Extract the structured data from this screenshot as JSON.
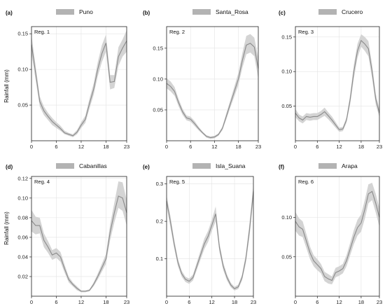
{
  "figure": {
    "ylabel": "Rainfall (mm)"
  },
  "chart_data": [
    {
      "type": "line",
      "panel_letter": "(a)",
      "legend": "Puno",
      "region": "Reg. 1",
      "ylabel": "Rainfall (mm)",
      "x": [
        0,
        1,
        2,
        3,
        4,
        5,
        6,
        7,
        8,
        9,
        10,
        11,
        12,
        13,
        14,
        15,
        16,
        17,
        18,
        19,
        20,
        21,
        22,
        23
      ],
      "series": [
        {
          "values": [
            0.135,
            0.095,
            0.055,
            0.042,
            0.034,
            0.027,
            0.022,
            0.017,
            0.011,
            0.009,
            0.007,
            0.012,
            0.022,
            0.03,
            0.052,
            0.072,
            0.1,
            0.122,
            0.137,
            0.082,
            0.083,
            0.118,
            0.13,
            0.14
          ],
          "lower": [
            0.122,
            0.085,
            0.048,
            0.036,
            0.029,
            0.022,
            0.018,
            0.014,
            0.009,
            0.007,
            0.005,
            0.009,
            0.018,
            0.025,
            0.045,
            0.064,
            0.09,
            0.11,
            0.125,
            0.072,
            0.074,
            0.105,
            0.118,
            0.125
          ],
          "upper": [
            0.148,
            0.105,
            0.062,
            0.048,
            0.039,
            0.032,
            0.026,
            0.021,
            0.014,
            0.011,
            0.009,
            0.015,
            0.026,
            0.035,
            0.059,
            0.08,
            0.11,
            0.134,
            0.149,
            0.092,
            0.092,
            0.131,
            0.142,
            0.155
          ]
        }
      ],
      "xlim": [
        0,
        23
      ],
      "ylim": [
        0,
        0.16
      ],
      "yticks": [
        0.05,
        0.1,
        0.15
      ],
      "ytick_labels": [
        "0.05",
        "0.10",
        "0.15"
      ],
      "xticks": [
        0,
        6,
        12,
        18,
        23
      ],
      "xtick_labels": [
        "0",
        "6",
        "12",
        "18",
        "23"
      ]
    },
    {
      "type": "line",
      "panel_letter": "(b)",
      "legend": "Santa_Rosa",
      "region": "Reg. 2",
      "x": [
        0,
        1,
        2,
        3,
        4,
        5,
        6,
        7,
        8,
        9,
        10,
        11,
        12,
        13,
        14,
        15,
        16,
        17,
        18,
        19,
        20,
        21,
        22,
        23
      ],
      "series": [
        {
          "values": [
            0.093,
            0.088,
            0.08,
            0.062,
            0.047,
            0.037,
            0.035,
            0.028,
            0.02,
            0.013,
            0.007,
            0.005,
            0.006,
            0.01,
            0.02,
            0.04,
            0.06,
            0.08,
            0.1,
            0.13,
            0.155,
            0.158,
            0.152,
            0.117
          ],
          "lower": [
            0.085,
            0.08,
            0.073,
            0.056,
            0.042,
            0.033,
            0.031,
            0.024,
            0.017,
            0.011,
            0.005,
            0.003,
            0.004,
            0.008,
            0.017,
            0.035,
            0.054,
            0.072,
            0.09,
            0.118,
            0.14,
            0.143,
            0.137,
            0.1
          ],
          "upper": [
            0.101,
            0.096,
            0.087,
            0.068,
            0.052,
            0.041,
            0.039,
            0.032,
            0.023,
            0.015,
            0.009,
            0.007,
            0.008,
            0.012,
            0.023,
            0.045,
            0.066,
            0.088,
            0.11,
            0.142,
            0.17,
            0.173,
            0.167,
            0.134
          ]
        }
      ],
      "xlim": [
        0,
        23
      ],
      "ylim": [
        0,
        0.185
      ],
      "yticks": [
        0.05,
        0.1,
        0.15
      ],
      "ytick_labels": [
        "0.05",
        "0.10",
        "0.15"
      ],
      "xticks": [
        0,
        6,
        12,
        18,
        23
      ],
      "xtick_labels": [
        "0",
        "6",
        "12",
        "18",
        "23"
      ]
    },
    {
      "type": "line",
      "panel_letter": "(c)",
      "legend": "Crucero",
      "region": "Reg. 3",
      "x": [
        0,
        1,
        2,
        3,
        4,
        5,
        6,
        7,
        8,
        9,
        10,
        11,
        12,
        13,
        14,
        15,
        16,
        17,
        18,
        19,
        20,
        21,
        22,
        23
      ],
      "series": [
        {
          "values": [
            0.04,
            0.033,
            0.03,
            0.035,
            0.034,
            0.035,
            0.035,
            0.038,
            0.042,
            0.036,
            0.03,
            0.023,
            0.016,
            0.017,
            0.03,
            0.06,
            0.1,
            0.13,
            0.145,
            0.14,
            0.133,
            0.1,
            0.06,
            0.04
          ],
          "lower": [
            0.034,
            0.028,
            0.025,
            0.03,
            0.029,
            0.03,
            0.03,
            0.033,
            0.036,
            0.031,
            0.025,
            0.019,
            0.013,
            0.014,
            0.026,
            0.053,
            0.09,
            0.12,
            0.136,
            0.13,
            0.122,
            0.09,
            0.052,
            0.034
          ],
          "upper": [
            0.046,
            0.038,
            0.035,
            0.04,
            0.039,
            0.04,
            0.04,
            0.043,
            0.048,
            0.041,
            0.035,
            0.027,
            0.019,
            0.02,
            0.034,
            0.067,
            0.11,
            0.14,
            0.154,
            0.15,
            0.144,
            0.11,
            0.068,
            0.046
          ]
        }
      ],
      "xlim": [
        0,
        23
      ],
      "ylim": [
        0,
        0.165
      ],
      "yticks": [
        0.05,
        0.1,
        0.15
      ],
      "ytick_labels": [
        "0.05",
        "0.10",
        "0.15"
      ],
      "xticks": [
        0,
        6,
        12,
        18,
        23
      ],
      "xtick_labels": [
        "0",
        "6",
        "12",
        "18",
        "23"
      ]
    },
    {
      "type": "line",
      "panel_letter": "(d)",
      "legend": "Cabanillas",
      "region": "Reg. 4",
      "ylabel": "Rainfall (mm)",
      "x": [
        0,
        1,
        2,
        3,
        4,
        5,
        6,
        7,
        8,
        9,
        10,
        11,
        12,
        13,
        14,
        15,
        16,
        17,
        18,
        19,
        20,
        21,
        22,
        23
      ],
      "series": [
        {
          "values": [
            0.077,
            0.072,
            0.072,
            0.057,
            0.05,
            0.042,
            0.044,
            0.04,
            0.028,
            0.017,
            0.012,
            0.008,
            0.005,
            0.005,
            0.006,
            0.012,
            0.02,
            0.029,
            0.038,
            0.065,
            0.085,
            0.102,
            0.1,
            0.085
          ],
          "lower": [
            0.066,
            0.063,
            0.064,
            0.05,
            0.044,
            0.037,
            0.039,
            0.035,
            0.024,
            0.014,
            0.01,
            0.006,
            0.004,
            0.004,
            0.005,
            0.01,
            0.017,
            0.025,
            0.033,
            0.057,
            0.075,
            0.09,
            0.087,
            0.072
          ],
          "upper": [
            0.088,
            0.081,
            0.08,
            0.064,
            0.056,
            0.047,
            0.049,
            0.045,
            0.032,
            0.02,
            0.014,
            0.01,
            0.006,
            0.006,
            0.007,
            0.014,
            0.023,
            0.033,
            0.043,
            0.073,
            0.095,
            0.117,
            0.116,
            0.098
          ]
        }
      ],
      "xlim": [
        0,
        23
      ],
      "ylim": [
        0,
        0.122
      ],
      "yticks": [
        0.02,
        0.04,
        0.06,
        0.08,
        0.1,
        0.12
      ],
      "ytick_labels": [
        "0.02",
        "0.04",
        "0.06",
        "0.08",
        "0.10",
        "0.12"
      ],
      "xticks": [
        0,
        6,
        12,
        18,
        23
      ],
      "xtick_labels": [
        "0",
        "6",
        "12",
        "18",
        "23"
      ]
    },
    {
      "type": "line",
      "panel_letter": "(e)",
      "legend": "Isla_Suana",
      "region": "Reg. 5",
      "x": [
        0,
        1,
        2,
        3,
        4,
        5,
        6,
        7,
        8,
        9,
        10,
        11,
        12,
        13,
        14,
        15,
        16,
        17,
        18,
        19,
        20,
        21,
        22,
        23
      ],
      "series": [
        {
          "values": [
            0.255,
            0.2,
            0.14,
            0.09,
            0.06,
            0.045,
            0.04,
            0.05,
            0.08,
            0.11,
            0.14,
            0.16,
            0.19,
            0.22,
            0.13,
            0.08,
            0.05,
            0.03,
            0.02,
            0.025,
            0.05,
            0.1,
            0.18,
            0.28
          ],
          "lower": [
            0.24,
            0.185,
            0.128,
            0.08,
            0.052,
            0.038,
            0.033,
            0.042,
            0.07,
            0.098,
            0.126,
            0.145,
            0.175,
            0.2,
            0.118,
            0.07,
            0.042,
            0.024,
            0.015,
            0.019,
            0.042,
            0.088,
            0.162,
            0.26
          ],
          "upper": [
            0.27,
            0.215,
            0.152,
            0.1,
            0.068,
            0.052,
            0.047,
            0.058,
            0.09,
            0.122,
            0.154,
            0.175,
            0.205,
            0.24,
            0.142,
            0.09,
            0.058,
            0.036,
            0.025,
            0.031,
            0.058,
            0.112,
            0.198,
            0.3
          ]
        }
      ],
      "xlim": [
        0,
        23
      ],
      "ylim": [
        0,
        0.32
      ],
      "yticks": [
        0.1,
        0.2,
        0.3
      ],
      "ytick_labels": [
        "0.1",
        "0.2",
        "0.3"
      ],
      "xticks": [
        0,
        6,
        12,
        18,
        23
      ],
      "xtick_labels": [
        "0",
        "6",
        "12",
        "18",
        "23"
      ]
    },
    {
      "type": "line",
      "panel_letter": "(f)",
      "legend": "Arapa",
      "region": "Reg. 6",
      "x": [
        0,
        1,
        2,
        3,
        4,
        5,
        6,
        7,
        8,
        9,
        10,
        11,
        12,
        13,
        14,
        15,
        16,
        17,
        18,
        19,
        20,
        21,
        22,
        23
      ],
      "series": [
        {
          "values": [
            0.095,
            0.088,
            0.085,
            0.07,
            0.055,
            0.045,
            0.04,
            0.035,
            0.025,
            0.022,
            0.02,
            0.03,
            0.032,
            0.035,
            0.045,
            0.06,
            0.075,
            0.087,
            0.093,
            0.11,
            0.13,
            0.133,
            0.118,
            0.1
          ],
          "lower": [
            0.083,
            0.077,
            0.075,
            0.061,
            0.047,
            0.038,
            0.033,
            0.029,
            0.019,
            0.016,
            0.015,
            0.024,
            0.026,
            0.029,
            0.038,
            0.052,
            0.066,
            0.077,
            0.082,
            0.098,
            0.118,
            0.122,
            0.106,
            0.088
          ],
          "upper": [
            0.107,
            0.099,
            0.095,
            0.079,
            0.063,
            0.052,
            0.047,
            0.041,
            0.031,
            0.028,
            0.025,
            0.036,
            0.038,
            0.041,
            0.052,
            0.068,
            0.084,
            0.097,
            0.104,
            0.122,
            0.142,
            0.144,
            0.13,
            0.112
          ]
        }
      ],
      "xlim": [
        0,
        23
      ],
      "ylim": [
        0,
        0.152
      ],
      "yticks": [
        0.05,
        0.1
      ],
      "ytick_labels": [
        "0.05",
        "0.10"
      ],
      "xticks": [
        0,
        6,
        12,
        18,
        23
      ],
      "xtick_labels": [
        "0",
        "6",
        "12",
        "18",
        "23"
      ]
    }
  ]
}
